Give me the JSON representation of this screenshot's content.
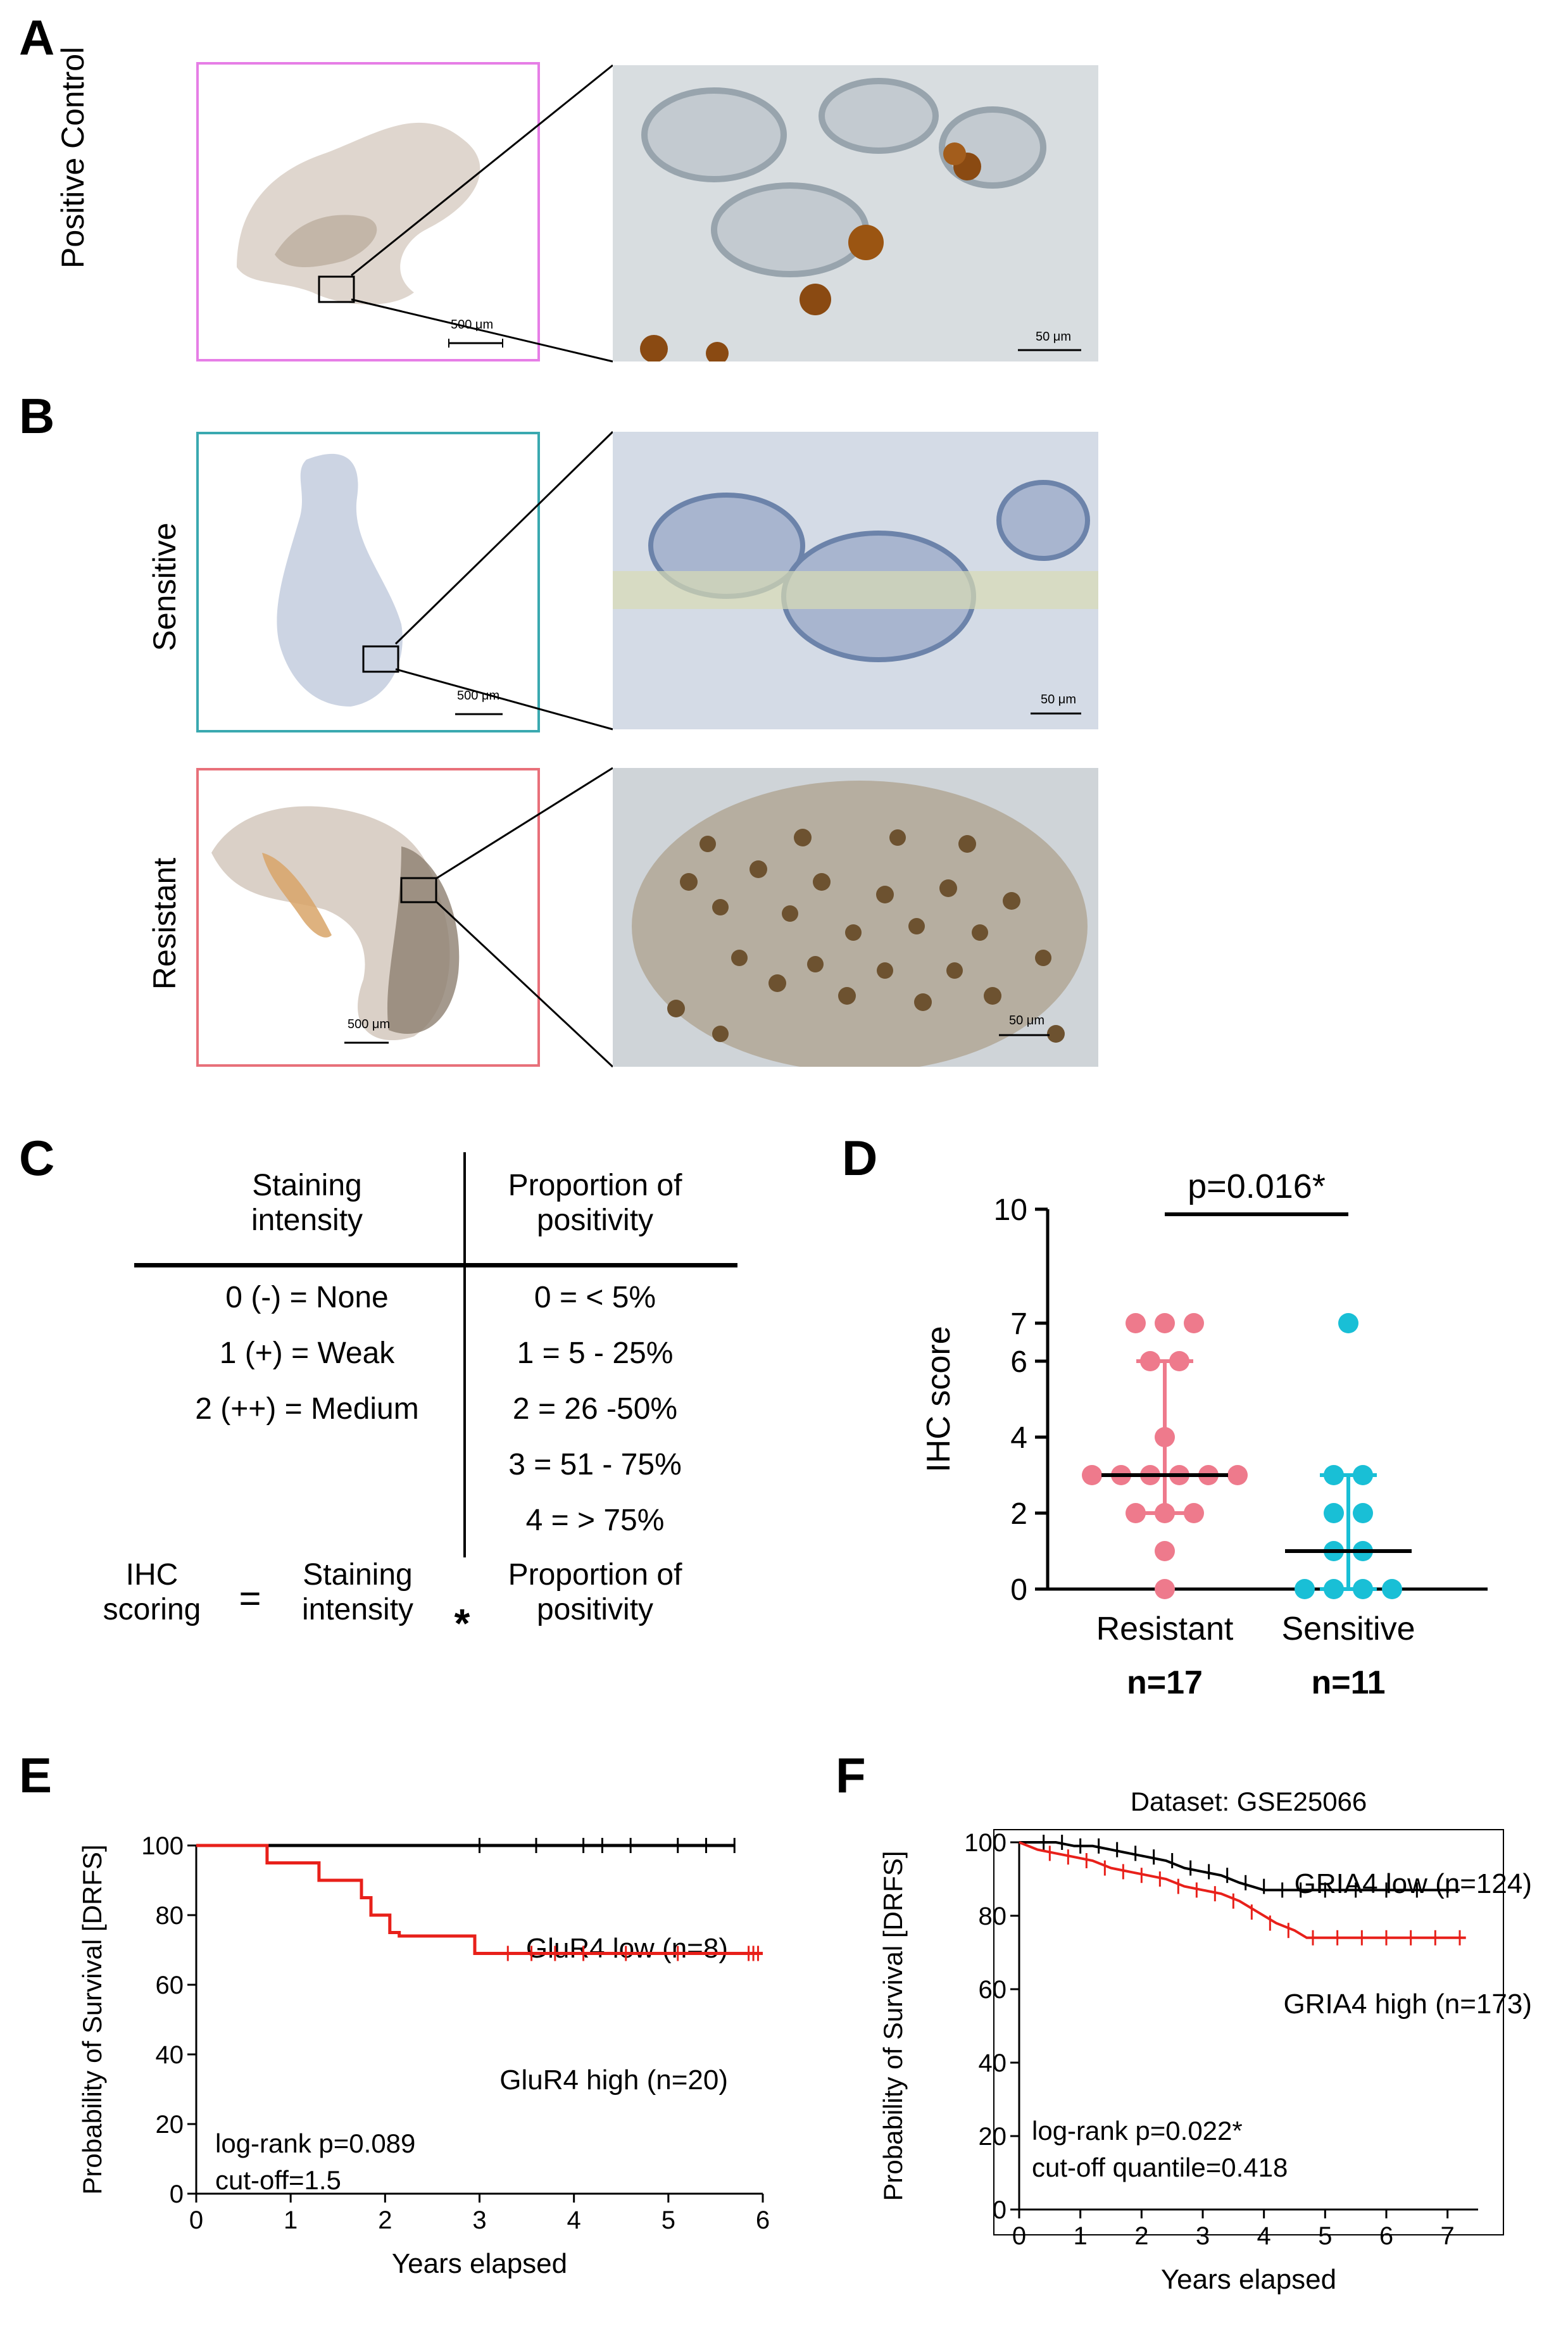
{
  "panels": {
    "A": {
      "letter": "A",
      "label": "Positive Control",
      "scale_thumb": "500 μm",
      "scale_zoom": "50 μm",
      "frame_color": "#e67ee6"
    },
    "B": {
      "letter": "B",
      "sensitive": {
        "label": "Sensitive",
        "scale_thumb": "500 μm",
        "scale_zoom": "50 μm",
        "frame_color": "#3aa9b0"
      },
      "resistant": {
        "label": "Resistant",
        "scale_thumb": "500 μm",
        "scale_zoom": "50 μm",
        "frame_color": "#e8707a"
      }
    },
    "C": {
      "letter": "C",
      "col1_header": "Staining\nintensity",
      "col2_header": "Proportion of\npositivity",
      "col1_rows": [
        "0 (-) = None",
        "1 (+) = Weak",
        "2 (++) = Medium"
      ],
      "col2_rows": [
        "0 = < 5%",
        "1 = 5 - 25%",
        "2 = 26 -50%",
        "3 = 51 - 75%",
        "4 = > 75%"
      ],
      "formula": {
        "lhs": "IHC\nscoring",
        "eq": "=",
        "term1": "Staining\nintensity",
        "op": "*",
        "term2": "Proportion of\npositivity"
      }
    },
    "D": {
      "letter": "D",
      "p_label": "p=0.016*",
      "ylabel": "IHC score"
    },
    "E": {
      "letter": "E"
    },
    "F": {
      "letter": "F"
    }
  },
  "chart_data": [
    {
      "id": "D",
      "type": "scatter",
      "title": "p=0.016*",
      "ylabel": "IHC score",
      "ylim": [
        0,
        10
      ],
      "yticks": [
        "0",
        "2",
        "4",
        "6",
        "7",
        "10"
      ],
      "ytick_values": [
        0,
        2,
        4,
        6,
        7,
        10
      ],
      "categories": [
        "Resistant",
        "Sensitive"
      ],
      "counts": [
        "n=17",
        "n=11"
      ],
      "colors": [
        "#ee7a8c",
        "#19bfd6"
      ],
      "series": [
        {
          "name": "Resistant",
          "values": [
            7,
            7,
            7,
            6,
            6,
            4,
            3,
            3,
            3,
            3,
            3,
            3,
            2,
            2,
            2,
            1,
            0
          ],
          "median": 3,
          "q1": 2,
          "q3": 6
        },
        {
          "name": "Sensitive",
          "values": [
            7,
            3,
            3,
            2,
            2,
            1,
            1,
            0,
            0,
            0,
            0
          ],
          "median": 1,
          "q1": 0,
          "q3": 3
        }
      ]
    },
    {
      "id": "E",
      "type": "line",
      "xlabel": "Years elapsed",
      "ylabel": "Probability of Survival [DRFS]",
      "xlim": [
        0,
        6
      ],
      "ylim": [
        0,
        100
      ],
      "xticks": [
        "0",
        "1",
        "2",
        "3",
        "4",
        "5",
        "6"
      ],
      "yticks": [
        "0",
        "20",
        "40",
        "60",
        "80",
        "100"
      ],
      "annotations": [
        "log-rank p=0.089",
        "cut-off=1.5"
      ],
      "series": [
        {
          "name": "GluR4 low (n=8)",
          "color": "#000000",
          "x": [
            0,
            5.7
          ],
          "y": [
            100,
            100
          ],
          "censor_x": [
            3.0,
            3.6,
            4.1,
            4.3,
            4.6,
            5.1,
            5.4,
            5.7
          ],
          "censor_y": [
            100,
            100,
            100,
            100,
            100,
            100,
            100,
            100
          ]
        },
        {
          "name": "GluR4 high (n=20)",
          "color": "#e8201a",
          "x": [
            0,
            0.75,
            0.75,
            1.3,
            1.3,
            1.75,
            1.75,
            1.85,
            1.85,
            2.05,
            2.05,
            2.15,
            2.15,
            2.95,
            2.95,
            6.0
          ],
          "y": [
            100,
            100,
            95,
            95,
            90,
            90,
            85,
            85,
            80,
            80,
            75,
            75,
            74,
            74,
            69,
            69
          ],
          "censor_x": [
            3.3,
            3.55,
            3.8,
            4.1,
            4.55,
            5.1,
            5.85,
            5.9,
            5.95
          ],
          "censor_y": [
            69,
            69,
            69,
            69,
            69,
            69,
            69,
            69,
            69
          ]
        }
      ]
    },
    {
      "id": "F",
      "type": "line",
      "title": "Dataset: GSE25066",
      "xlabel": "Years elapsed",
      "ylabel": "Probability of Survival  [DRFS]",
      "xlim": [
        0,
        7.5
      ],
      "ylim": [
        0,
        100
      ],
      "xticks": [
        "0",
        "1",
        "2",
        "3",
        "4",
        "5",
        "6",
        "7"
      ],
      "yticks": [
        "0",
        "20",
        "40",
        "60",
        "80",
        "100"
      ],
      "annotations": [
        "log-rank p=0.022*",
        "cut-off quantile=0.418"
      ],
      "series": [
        {
          "name": "GRIA4 low (n=124)",
          "color": "#000000",
          "x": [
            0,
            0.6,
            0.9,
            1.2,
            1.5,
            1.8,
            2.1,
            2.4,
            2.7,
            3.0,
            3.3,
            3.6,
            3.8,
            4.0,
            4.5,
            5.0,
            7.2
          ],
          "y": [
            100,
            100,
            99,
            99,
            98,
            97,
            96,
            95,
            93,
            92,
            91,
            89,
            88,
            87,
            87,
            87,
            87
          ],
          "censor_x": [
            0.4,
            0.7,
            1.0,
            1.3,
            1.6,
            1.9,
            2.2,
            2.5,
            2.8,
            3.1,
            3.4,
            3.7,
            4.0,
            4.3,
            4.6,
            5.0,
            5.5,
            6.0,
            6.5,
            7.0
          ],
          "censor_y": [
            100,
            100,
            99,
            99,
            98,
            97,
            96,
            95,
            93,
            92,
            91,
            89,
            88,
            87,
            87,
            87,
            87,
            87,
            87,
            87
          ]
        },
        {
          "name": "GRIA4 high (n=173)",
          "color": "#e8201a",
          "x": [
            0,
            0.3,
            0.6,
            0.9,
            1.2,
            1.5,
            1.8,
            2.1,
            2.4,
            2.7,
            3.0,
            3.3,
            3.6,
            3.9,
            4.2,
            4.5,
            4.7,
            7.3
          ],
          "y": [
            100,
            98,
            97,
            96,
            95,
            93,
            92,
            91,
            90,
            88,
            87,
            86,
            84,
            81,
            78,
            76,
            74,
            74
          ],
          "censor_x": [
            0.5,
            0.8,
            1.1,
            1.4,
            1.7,
            2.0,
            2.3,
            2.6,
            2.9,
            3.2,
            3.5,
            3.8,
            4.1,
            4.4,
            4.8,
            5.2,
            5.6,
            6.0,
            6.4,
            6.8,
            7.2
          ],
          "censor_y": [
            97,
            96,
            95,
            93,
            92,
            91,
            90,
            88,
            87,
            86,
            84,
            81,
            78,
            76,
            74,
            74,
            74,
            74,
            74,
            74,
            74
          ]
        }
      ]
    }
  ]
}
